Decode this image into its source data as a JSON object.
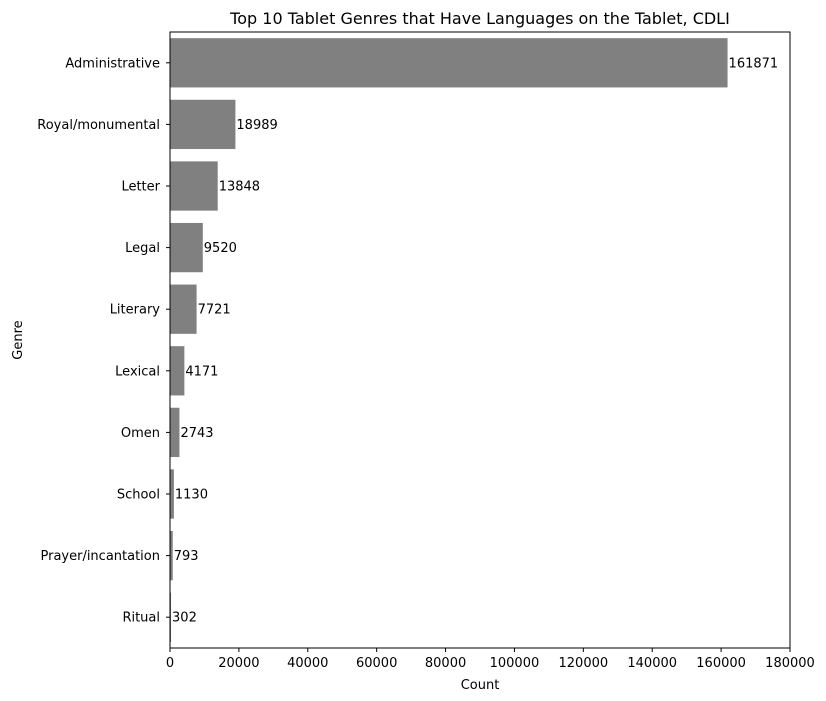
{
  "chart_data": {
    "type": "bar",
    "orientation": "horizontal",
    "title": "Top 10 Tablet Genres that Have Languages on the Tablet, CDLI",
    "xlabel": "Count",
    "ylabel": "Genre",
    "categories": [
      "Administrative",
      "Royal/monumental",
      "Letter",
      "Legal",
      "Literary",
      "Lexical",
      "Omen",
      "School",
      "Prayer/incantation",
      "Ritual"
    ],
    "values": [
      161871,
      18989,
      13848,
      9520,
      7721,
      4171,
      2743,
      1130,
      793,
      302
    ],
    "data_labels": [
      "161871",
      "18989",
      "13848",
      "9520",
      "7721",
      "4171",
      "2743",
      "1130",
      "793",
      "302"
    ],
    "xlim": [
      0,
      180000
    ],
    "xticks": [
      0,
      20000,
      40000,
      60000,
      80000,
      100000,
      120000,
      140000,
      160000,
      180000
    ],
    "xtick_labels": [
      "0",
      "20000",
      "40000",
      "60000",
      "80000",
      "100000",
      "120000",
      "140000",
      "160000",
      "180000"
    ],
    "bar_color": "#808080",
    "grid": false,
    "legend": "none"
  }
}
